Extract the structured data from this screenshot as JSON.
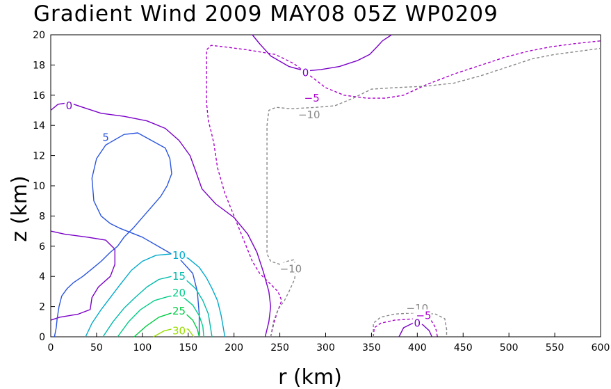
{
  "chart_data": {
    "type": "contour",
    "title": "Gradient Wind 2009 MAY08 05Z  WP0209",
    "xlabel": "r (km)",
    "ylabel": "z (km)",
    "xlim": [
      0,
      600
    ],
    "ylim": [
      0,
      20
    ],
    "x_ticks": [
      "0",
      "50",
      "100",
      "150",
      "200",
      "250",
      "300",
      "350",
      "400",
      "450",
      "500",
      "550",
      "600"
    ],
    "y_ticks": [
      "0",
      "2",
      "4",
      "6",
      "8",
      "10",
      "12",
      "14",
      "16",
      "18",
      "20"
    ],
    "contours": [
      {
        "level": "0",
        "color": "#7a00c8",
        "dashed": false,
        "points": [
          [
            0,
            15.0
          ],
          [
            8,
            15.4
          ],
          [
            20,
            15.5
          ],
          [
            35,
            15.2
          ],
          [
            55,
            14.8
          ],
          [
            80,
            14.6
          ],
          [
            105,
            14.3
          ],
          [
            125,
            13.8
          ],
          [
            140,
            13.0
          ],
          [
            152,
            12.0
          ],
          [
            158,
            11.0
          ],
          [
            165,
            9.8
          ],
          [
            180,
            8.8
          ],
          [
            200,
            7.9
          ],
          [
            215,
            6.8
          ],
          [
            225,
            5.6
          ],
          [
            232,
            4.3
          ],
          [
            238,
            3.0
          ],
          [
            240,
            2.0
          ],
          [
            238,
            1.0
          ],
          [
            234,
            0.0
          ]
        ]
      },
      {
        "level": "0",
        "color": "#7a00c8",
        "dashed": false,
        "points": [
          [
            0,
            7.0
          ],
          [
            15,
            6.8
          ],
          [
            40,
            6.6
          ],
          [
            60,
            6.4
          ],
          [
            70,
            5.8
          ],
          [
            70,
            4.8
          ],
          [
            65,
            4.0
          ],
          [
            52,
            3.3
          ],
          [
            45,
            2.6
          ],
          [
            43,
            1.8
          ],
          [
            30,
            1.5
          ],
          [
            10,
            1.3
          ],
          [
            0,
            1.1
          ]
        ]
      },
      {
        "level": "0",
        "color": "#7a00c8",
        "dashed": false,
        "points": [
          [
            220,
            20.0
          ],
          [
            228,
            19.4
          ],
          [
            240,
            18.6
          ],
          [
            260,
            17.9
          ],
          [
            278,
            17.6
          ],
          [
            295,
            17.7
          ],
          [
            315,
            17.9
          ],
          [
            335,
            18.3
          ],
          [
            348,
            18.7
          ],
          [
            356,
            19.2
          ],
          [
            362,
            19.6
          ],
          [
            372,
            20.0
          ]
        ]
      },
      {
        "level": "0",
        "color": "#7a00c8",
        "dashed": false,
        "points": [
          [
            380,
            0.0
          ],
          [
            385,
            0.6
          ],
          [
            395,
            0.9
          ],
          [
            406,
            0.8
          ],
          [
            413,
            0.4
          ],
          [
            416,
            0.0
          ]
        ]
      },
      {
        "level": "-5",
        "color": "#aa00cc",
        "dashed": true,
        "points": [
          [
            240,
            0.0
          ],
          [
            243,
            0.8
          ],
          [
            247,
            1.6
          ],
          [
            252,
            2.4
          ],
          [
            248,
            3.0
          ],
          [
            238,
            3.6
          ],
          [
            228,
            4.2
          ],
          [
            220,
            5.0
          ],
          [
            210,
            6.5
          ],
          [
            200,
            8.0
          ],
          [
            190,
            9.5
          ],
          [
            182,
            11.2
          ],
          [
            178,
            12.8
          ],
          [
            175,
            13.6
          ],
          [
            172,
            14.3
          ],
          [
            170,
            15.5
          ],
          [
            170,
            17.0
          ],
          [
            170,
            19.0
          ],
          [
            175,
            19.3
          ],
          [
            190,
            19.2
          ],
          [
            215,
            19.0
          ],
          [
            245,
            18.7
          ],
          [
            265,
            18.1
          ],
          [
            285,
            17.2
          ],
          [
            300,
            16.5
          ],
          [
            320,
            16.0
          ],
          [
            345,
            15.8
          ],
          [
            365,
            15.8
          ],
          [
            385,
            16.0
          ],
          [
            410,
            16.7
          ],
          [
            440,
            17.4
          ],
          [
            470,
            18.0
          ],
          [
            495,
            18.5
          ],
          [
            520,
            18.9
          ],
          [
            545,
            19.2
          ],
          [
            570,
            19.4
          ],
          [
            600,
            19.6
          ]
        ]
      },
      {
        "level": "-5",
        "color": "#aa00cc",
        "dashed": true,
        "points": [
          [
            352,
            0.0
          ],
          [
            353,
            0.6
          ],
          [
            360,
            0.9
          ],
          [
            375,
            1.1
          ],
          [
            398,
            1.2
          ],
          [
            415,
            1.1
          ],
          [
            420,
            0.6
          ],
          [
            422,
            0.0
          ]
        ]
      },
      {
        "level": "-10",
        "color": "#888888",
        "dashed": true,
        "points": [
          [
            240,
            0.0
          ],
          [
            243,
            1.0
          ],
          [
            248,
            1.8
          ],
          [
            255,
            2.4
          ],
          [
            260,
            3.0
          ],
          [
            266,
            3.8
          ],
          [
            268,
            4.6
          ],
          [
            265,
            5.1
          ],
          [
            258,
            5.0
          ],
          [
            250,
            4.8
          ],
          [
            240,
            5.0
          ],
          [
            236,
            5.5
          ],
          [
            236,
            7.0
          ],
          [
            236,
            10.0
          ],
          [
            236,
            12.0
          ],
          [
            236,
            14.0
          ],
          [
            238,
            15.0
          ],
          [
            246,
            15.2
          ],
          [
            262,
            15.1
          ],
          [
            290,
            15.2
          ],
          [
            310,
            15.3
          ],
          [
            330,
            15.8
          ],
          [
            350,
            16.4
          ],
          [
            375,
            16.5
          ],
          [
            410,
            16.6
          ],
          [
            440,
            16.8
          ],
          [
            470,
            17.3
          ],
          [
            500,
            17.9
          ],
          [
            525,
            18.4
          ],
          [
            550,
            18.7
          ],
          [
            575,
            18.9
          ],
          [
            600,
            19.1
          ]
        ]
      },
      {
        "level": "-10",
        "color": "#888888",
        "dashed": true,
        "points": [
          [
            352,
            0.0
          ],
          [
            352,
            0.9
          ],
          [
            360,
            1.3
          ],
          [
            375,
            1.5
          ],
          [
            400,
            1.6
          ],
          [
            420,
            1.5
          ],
          [
            430,
            1.2
          ],
          [
            432,
            0.5
          ],
          [
            432,
            0.0
          ]
        ]
      },
      {
        "level": "5",
        "color": "#2a55dd",
        "dashed": false,
        "points": [
          [
            4,
            0.0
          ],
          [
            6,
            0.6
          ],
          [
            7,
            1.2
          ],
          [
            9,
            2.0
          ],
          [
            12,
            2.7
          ],
          [
            18,
            3.2
          ],
          [
            25,
            3.6
          ],
          [
            35,
            4.0
          ],
          [
            45,
            4.5
          ],
          [
            55,
            5.0
          ],
          [
            65,
            5.6
          ],
          [
            73,
            6.0
          ],
          [
            80,
            6.6
          ],
          [
            90,
            7.2
          ],
          [
            100,
            7.9
          ],
          [
            110,
            8.6
          ],
          [
            120,
            9.3
          ],
          [
            127,
            10.0
          ],
          [
            132,
            10.8
          ],
          [
            130,
            11.8
          ],
          [
            125,
            12.5
          ],
          [
            110,
            13.0
          ],
          [
            95,
            13.5
          ],
          [
            80,
            13.4
          ],
          [
            60,
            12.7
          ],
          [
            50,
            11.8
          ],
          [
            45,
            10.5
          ],
          [
            47,
            9.0
          ],
          [
            55,
            8.0
          ],
          [
            65,
            7.5
          ],
          [
            75,
            7.2
          ],
          [
            100,
            6.6
          ],
          [
            120,
            5.9
          ],
          [
            140,
            5.2
          ],
          [
            155,
            4.2
          ],
          [
            160,
            3.0
          ],
          [
            162,
            1.5
          ],
          [
            162,
            0.0
          ]
        ]
      },
      {
        "level": "10",
        "color": "#00aacc",
        "dashed": false,
        "points": [
          [
            38,
            0.0
          ],
          [
            45,
            0.9
          ],
          [
            55,
            1.8
          ],
          [
            65,
            2.6
          ],
          [
            75,
            3.4
          ],
          [
            88,
            4.4
          ],
          [
            100,
            5.0
          ],
          [
            115,
            5.4
          ],
          [
            135,
            5.5
          ],
          [
            150,
            5.2
          ],
          [
            162,
            4.6
          ],
          [
            170,
            3.9
          ],
          [
            176,
            3.2
          ],
          [
            182,
            2.4
          ],
          [
            186,
            1.4
          ],
          [
            190,
            0.0
          ]
        ]
      },
      {
        "level": "15",
        "color": "#00bbaa",
        "dashed": false,
        "points": [
          [
            57,
            0.0
          ],
          [
            68,
            1.0
          ],
          [
            80,
            1.9
          ],
          [
            92,
            2.6
          ],
          [
            105,
            3.3
          ],
          [
            118,
            3.8
          ],
          [
            132,
            4.0
          ],
          [
            147,
            3.8
          ],
          [
            158,
            3.2
          ],
          [
            166,
            2.4
          ],
          [
            172,
            1.5
          ],
          [
            176,
            0.0
          ]
        ]
      },
      {
        "level": "20",
        "color": "#00cc88",
        "dashed": false,
        "points": [
          [
            73,
            0.0
          ],
          [
            85,
            1.0
          ],
          [
            98,
            1.8
          ],
          [
            113,
            2.4
          ],
          [
            130,
            2.7
          ],
          [
            145,
            2.6
          ],
          [
            155,
            2.1
          ],
          [
            162,
            1.4
          ],
          [
            166,
            0.7
          ],
          [
            167,
            0.0
          ]
        ]
      },
      {
        "level": "25",
        "color": "#00cc44",
        "dashed": false,
        "points": [
          [
            91,
            0.0
          ],
          [
            104,
            0.7
          ],
          [
            118,
            1.3
          ],
          [
            133,
            1.6
          ],
          [
            146,
            1.6
          ],
          [
            155,
            1.1
          ],
          [
            160,
            0.5
          ],
          [
            162,
            0.0
          ]
        ]
      },
      {
        "level": "30",
        "color": "#99dd00",
        "dashed": false,
        "points": [
          [
            112,
            0.0
          ],
          [
            124,
            0.4
          ],
          [
            138,
            0.6
          ],
          [
            150,
            0.5
          ],
          [
            156,
            0.0
          ]
        ]
      }
    ],
    "contour_labels": [
      {
        "text": "0",
        "color": "#7a00c8",
        "x": 20,
        "y": 15.3
      },
      {
        "text": "5",
        "color": "#2a55dd",
        "x": 60,
        "y": 13.2
      },
      {
        "text": "0",
        "color": "#7a00c8",
        "x": 278,
        "y": 17.5
      },
      {
        "text": "-5",
        "color": "#aa00cc",
        "x": 285,
        "y": 15.8
      },
      {
        "text": "-10",
        "color": "#888888",
        "x": 282,
        "y": 14.7
      },
      {
        "text": "-10",
        "color": "#888888",
        "x": 262,
        "y": 4.5
      },
      {
        "text": "10",
        "color": "#00aacc",
        "x": 140,
        "y": 5.4
      },
      {
        "text": "15",
        "color": "#00bbaa",
        "x": 140,
        "y": 4.0
      },
      {
        "text": "20",
        "color": "#00cc88",
        "x": 140,
        "y": 2.9
      },
      {
        "text": "25",
        "color": "#00cc44",
        "x": 140,
        "y": 1.7
      },
      {
        "text": "30",
        "color": "#99dd00",
        "x": 140,
        "y": 0.4
      },
      {
        "text": "-10",
        "color": "#888888",
        "x": 400,
        "y": 1.9
      },
      {
        "text": "-5",
        "color": "#aa00cc",
        "x": 407,
        "y": 1.4
      },
      {
        "text": "0",
        "color": "#7a00c8",
        "x": 400,
        "y": 0.9
      }
    ]
  }
}
